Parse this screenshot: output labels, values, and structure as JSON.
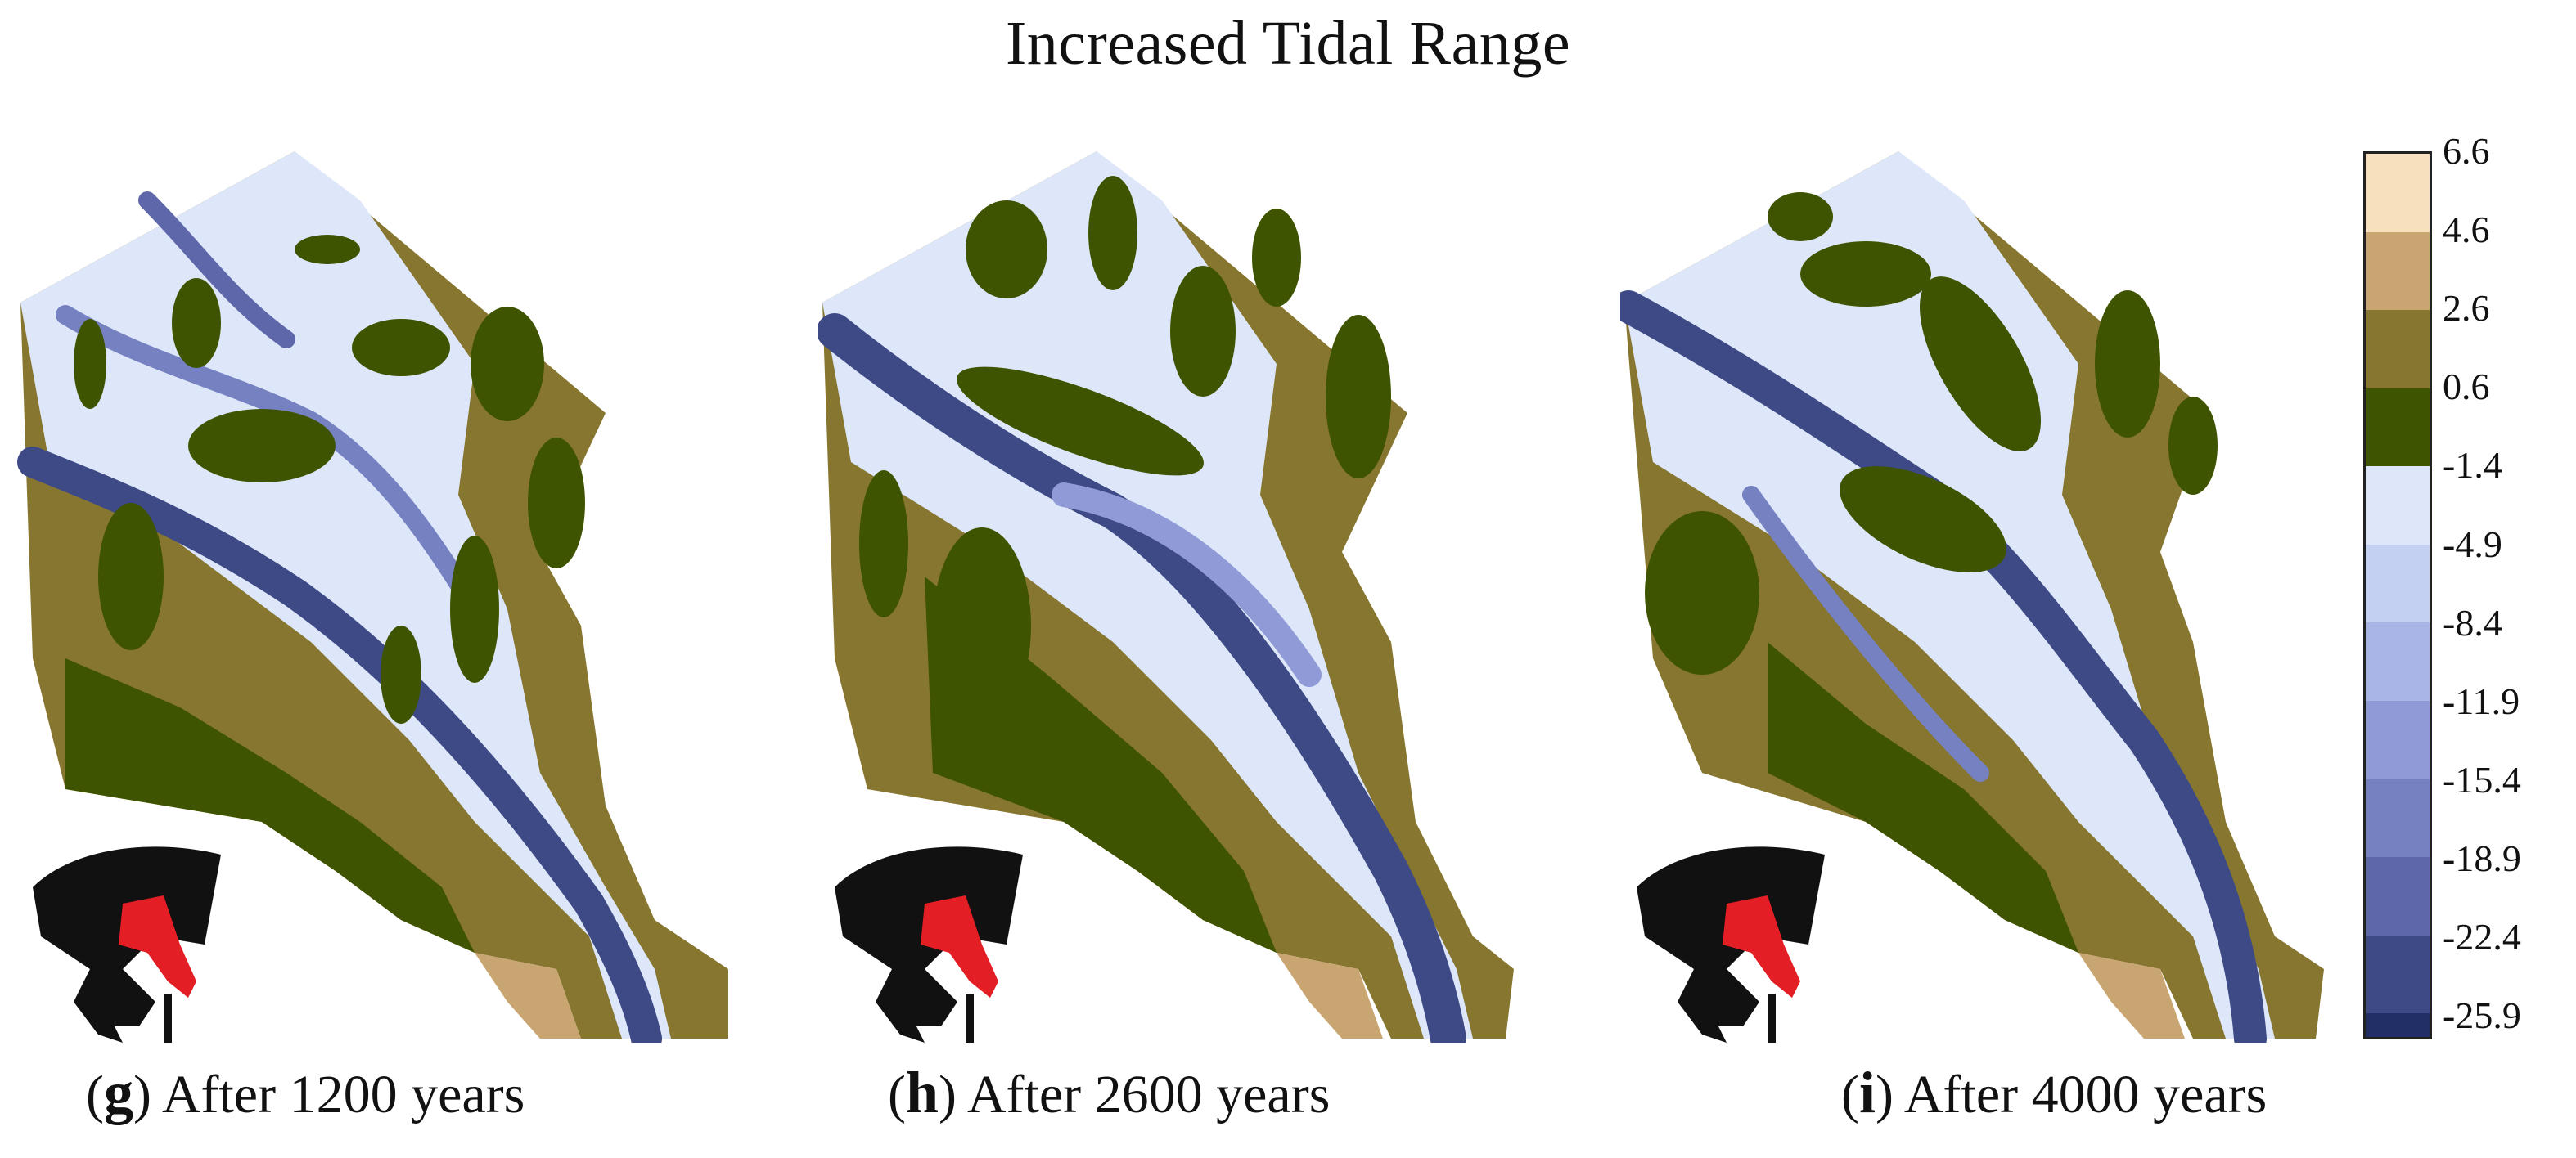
{
  "figure": {
    "title": "Increased Tidal Range"
  },
  "panels": [
    {
      "letter": "g",
      "caption": "After 1200 years"
    },
    {
      "letter": "h",
      "caption": "After 2600 years"
    },
    {
      "letter": "i",
      "caption": "After 4000 years"
    }
  ],
  "colorbar": {
    "tick_labels": [
      "6.6",
      "4.6",
      "2.6",
      "0.6",
      "-1.4",
      "-4.9",
      "-8.4",
      "-11.9",
      "-15.4",
      "-18.9",
      "-22.4",
      "-25.9"
    ],
    "band_colors": [
      "#f6e0bd",
      "#c9a571",
      "#86762f",
      "#3f5400",
      "#dde7f9",
      "#c3d0f2",
      "#a9b5e6",
      "#8f9ad6",
      "#7681c2",
      "#5d67a9",
      "#3e4a86",
      "#222e66"
    ]
  },
  "colors": {
    "land_high": "#86762f",
    "land_mid": "#3f5400",
    "sand": "#c9a571",
    "water_shallow": "#dde7f9",
    "water_mid": "#a9b5e6",
    "water_deep": "#3e4a86",
    "inset_mesh": "#111111",
    "inset_highlight": "#e31e24"
  }
}
